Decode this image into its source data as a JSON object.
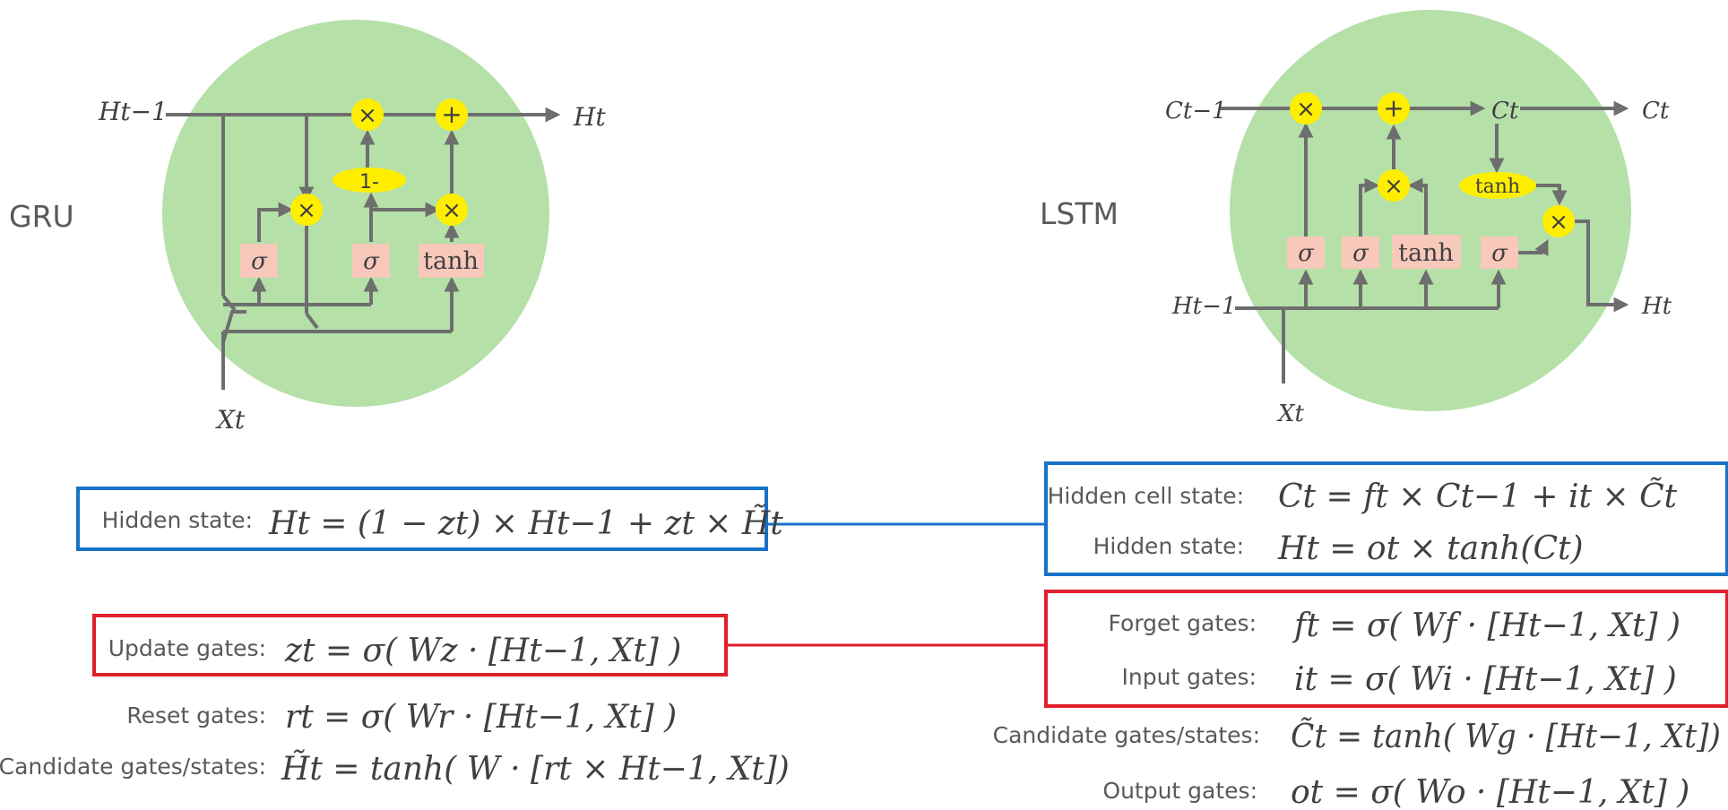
{
  "gru": {
    "title": "GRU",
    "labels": {
      "h_prev": "Ht−1",
      "h_out": "Ht",
      "x_in": "Xt"
    },
    "ops": {
      "mul": "×",
      "add": "+",
      "one_minus": "1-"
    },
    "gates": [
      "σ",
      "σ",
      "tanh"
    ],
    "equations": [
      {
        "label": "Hidden state:",
        "expr": "Ht = (1 − zt) × Ht−1 + zt × H̃t"
      },
      {
        "label": "Update gates:",
        "expr": "zt = σ(  Wz · [Ht−1, Xt]   )"
      },
      {
        "label": "Reset gates:",
        "expr": "rt = σ(  Wr · [Ht−1, Xt]   )"
      },
      {
        "label": "Candidate gates/states:",
        "expr": "H̃t = tanh( W · [rt × Ht−1, Xt])"
      }
    ]
  },
  "lstm": {
    "title": "LSTM",
    "labels": {
      "c_prev": "Ct−1",
      "c_mid": "Ct",
      "c_out": "Ct",
      "h_prev": "Ht−1",
      "h_out": "Ht",
      "x_in": "Xt"
    },
    "ops": {
      "mul": "×",
      "add": "+"
    },
    "gates": [
      "σ",
      "σ",
      "tanh",
      "σ"
    ],
    "cell_tanh": "tanh",
    "equations": [
      {
        "label": "Hidden cell state:",
        "expr": "Ct = ft × Ct−1 + it × C̃t"
      },
      {
        "label": "Hidden state:",
        "expr": "Ht = ot ×  tanh(Ct)"
      },
      {
        "label": "Forget gates:",
        "expr": "ft = σ(  Wf · [Ht−1, Xt]  )"
      },
      {
        "label": "Input gates:",
        "expr": "it =  σ(  Wi · [Ht−1, Xt]  )"
      },
      {
        "label": "Candidate gates/states:",
        "expr": "C̃t = tanh( Wg · [Ht−1, Xt])"
      },
      {
        "label": "Output gates:",
        "expr": "ot = σ(  Wo · [Ht−1, Xt]   )"
      }
    ]
  },
  "colors": {
    "cell": "#b5e0a8",
    "op": "#ffee00",
    "gate": "#f8c8bb",
    "line": "#6e6e6e",
    "blue_box": "#1873c8",
    "red_box": "#e01f2c"
  }
}
